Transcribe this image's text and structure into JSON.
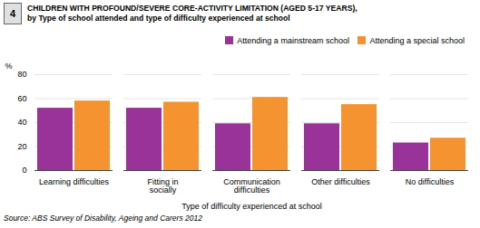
{
  "chart_data": {
    "type": "bar",
    "title": "CHILDREN WITH PROFOUND/SEVERE CORE-ACTIVITY LIMITATION (AGED 5-17 YEARS),",
    "subtitle": "by Type of school attended and type of difficulty experienced at school",
    "annotations": [
      "4",
      "Source: ABS Survey of Disability, Ageing and Carers 2012"
    ],
    "categories": [
      "Learning difficulties",
      "Fitting in\nsocially",
      "Communication\ndifficulties",
      "Other difficulties",
      "No difficulties"
    ],
    "series": [
      {
        "name": "Attending a mainstream school",
        "color": "#993399",
        "values": [
          52,
          52,
          39,
          39,
          23
        ]
      },
      {
        "name": "Attending a special school",
        "color": "#F4932F",
        "values": [
          58,
          57,
          61,
          55,
          27
        ]
      }
    ],
    "xlabel": "Type of difficulty experienced at school",
    "ylabel": "%",
    "ylim": [
      0,
      80
    ],
    "yticks": [
      0,
      20,
      40,
      60,
      80
    ],
    "grid": true,
    "legend": "upper-right"
  }
}
